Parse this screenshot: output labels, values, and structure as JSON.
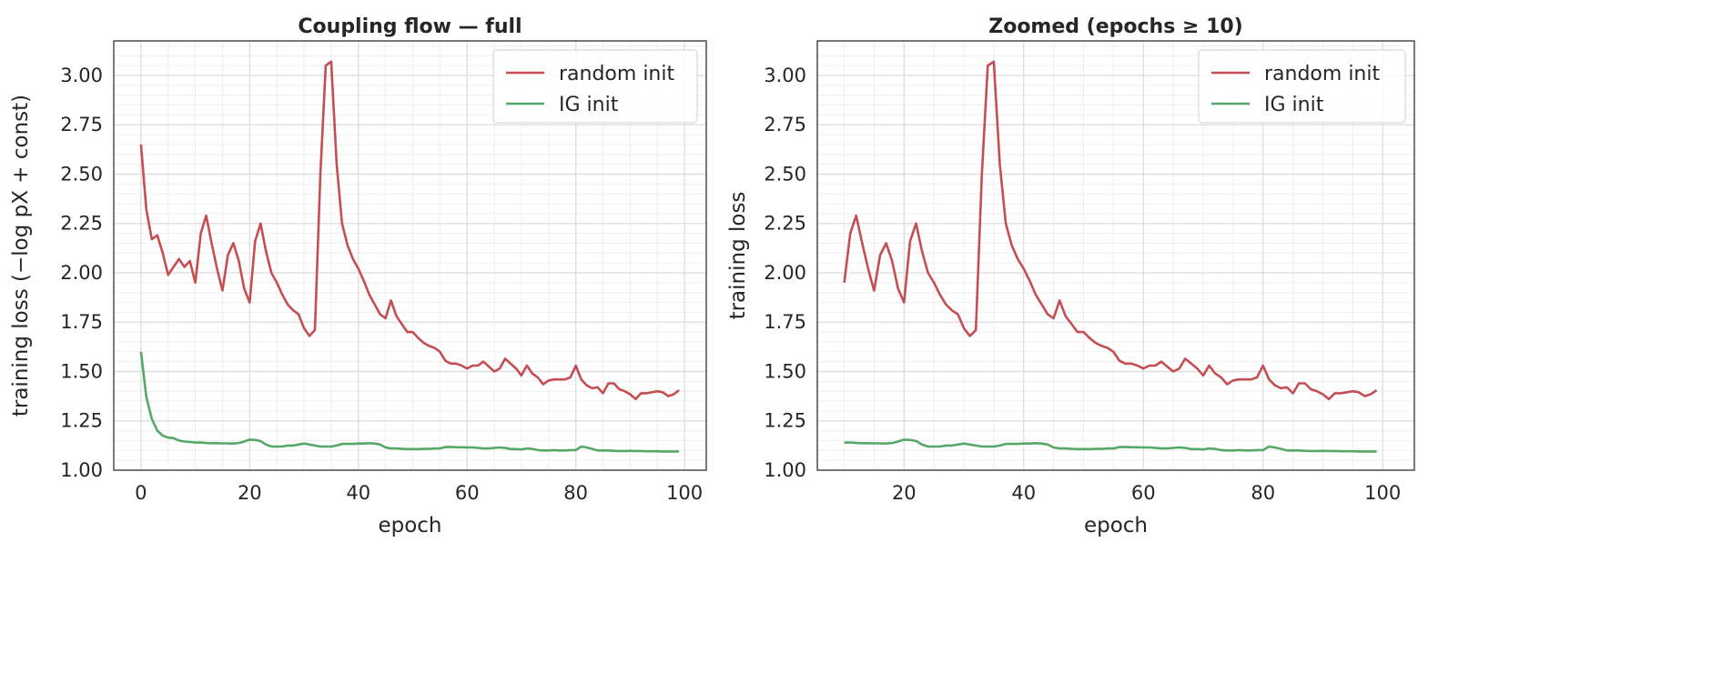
{
  "chart_data": [
    {
      "type": "line",
      "title": "Coupling flow — full",
      "xlabel": "epoch",
      "ylabel": "training loss  (−log pX + const)",
      "xlim": [
        -5,
        104
      ],
      "ylim": [
        1.0,
        3.175
      ],
      "xticks": [
        0,
        20,
        40,
        60,
        80,
        100
      ],
      "yticks": [
        1.0,
        1.25,
        1.5,
        1.75,
        2.0,
        2.25,
        2.5,
        2.75,
        3.0
      ],
      "grid": true,
      "legend": "top-right",
      "x_start": 0,
      "series": [
        {
          "name": "random init",
          "color": "#c44e52",
          "values": [
            2.65,
            2.32,
            2.17,
            2.19,
            2.1,
            1.99,
            2.03,
            2.07,
            2.03,
            2.06,
            1.95,
            2.2,
            2.29,
            2.15,
            2.02,
            1.91,
            2.09,
            2.15,
            2.06,
            1.92,
            1.85,
            2.16,
            2.25,
            2.11,
            2.0,
            1.95,
            1.89,
            1.84,
            1.81,
            1.79,
            1.72,
            1.68,
            1.71,
            2.5,
            3.05,
            3.07,
            2.55,
            2.25,
            2.14,
            2.07,
            2.02,
            1.96,
            1.89,
            1.84,
            1.79,
            1.77,
            1.86,
            1.78,
            1.74,
            1.7,
            1.7,
            1.67,
            1.645,
            1.63,
            1.62,
            1.6,
            1.555,
            1.54,
            1.54,
            1.53,
            1.515,
            1.53,
            1.53,
            1.55,
            1.525,
            1.5,
            1.515,
            1.565,
            1.54,
            1.515,
            1.48,
            1.53,
            1.49,
            1.47,
            1.435,
            1.455,
            1.46,
            1.46,
            1.46,
            1.47,
            1.53,
            1.46,
            1.43,
            1.415,
            1.42,
            1.39,
            1.44,
            1.44,
            1.41,
            1.4,
            1.385,
            1.36,
            1.39,
            1.39,
            1.395,
            1.4,
            1.395,
            1.375,
            1.385,
            1.405
          ]
        },
        {
          "name": "IG init",
          "color": "#55a868",
          "values": [
            1.6,
            1.37,
            1.26,
            1.2,
            1.175,
            1.165,
            1.162,
            1.15,
            1.145,
            1.143,
            1.14,
            1.14,
            1.138,
            1.137,
            1.137,
            1.136,
            1.136,
            1.135,
            1.138,
            1.145,
            1.155,
            1.153,
            1.148,
            1.13,
            1.12,
            1.12,
            1.12,
            1.125,
            1.125,
            1.13,
            1.135,
            1.13,
            1.125,
            1.12,
            1.12,
            1.12,
            1.125,
            1.133,
            1.133,
            1.133,
            1.135,
            1.135,
            1.137,
            1.135,
            1.13,
            1.115,
            1.11,
            1.11,
            1.108,
            1.107,
            1.107,
            1.107,
            1.108,
            1.108,
            1.11,
            1.11,
            1.117,
            1.118,
            1.116,
            1.116,
            1.115,
            1.115,
            1.113,
            1.11,
            1.11,
            1.113,
            1.115,
            1.113,
            1.107,
            1.107,
            1.105,
            1.11,
            1.108,
            1.102,
            1.1,
            1.1,
            1.102,
            1.1,
            1.1,
            1.102,
            1.102,
            1.12,
            1.115,
            1.108,
            1.1,
            1.1,
            1.1,
            1.098,
            1.097,
            1.097,
            1.098,
            1.097,
            1.097,
            1.096,
            1.096,
            1.096,
            1.095,
            1.095,
            1.095,
            1.095
          ]
        }
      ]
    },
    {
      "type": "line",
      "title": "Zoomed  (epochs ≥ 10)",
      "xlabel": "epoch",
      "ylabel": "training loss",
      "xlim": [
        5.5,
        105.3
      ],
      "ylim": [
        1.0,
        3.175
      ],
      "xticks": [
        20,
        40,
        60,
        80,
        100
      ],
      "yticks": [
        1.0,
        1.25,
        1.5,
        1.75,
        2.0,
        2.25,
        2.5,
        2.75,
        3.0
      ],
      "grid": true,
      "legend": "top-right",
      "x_start": 10,
      "series_from": "same as full chart, epochs 10-99",
      "series": [
        {
          "name": "random init",
          "color": "#c44e52"
        },
        {
          "name": "IG init",
          "color": "#55a868"
        }
      ]
    }
  ]
}
